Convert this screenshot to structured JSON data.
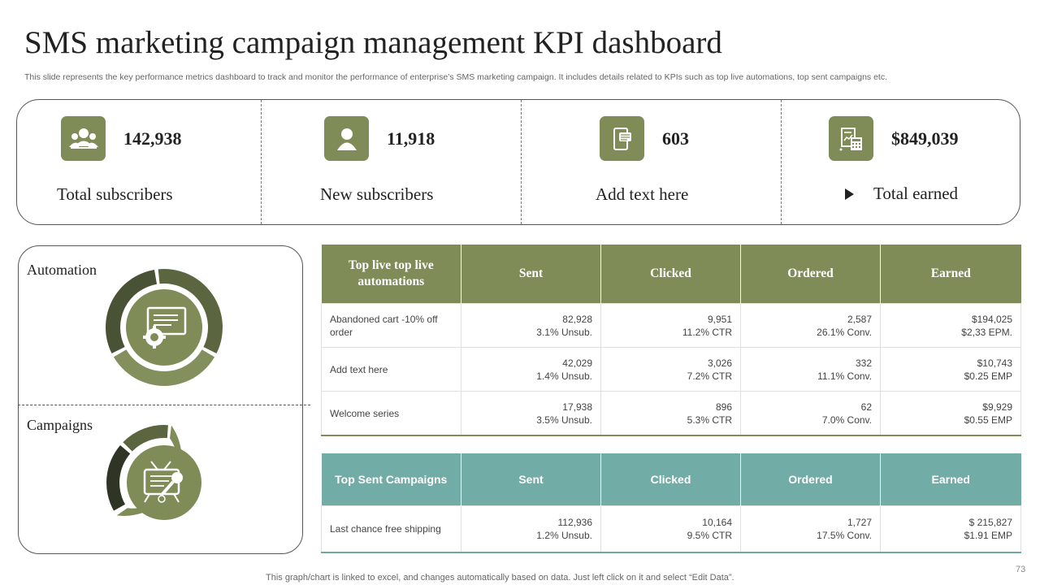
{
  "title": "SMS marketing campaign management KPI dashboard",
  "subtitle": "This slide represents the key performance metrics dashboard to track and monitor the performance of enterprise’s SMS marketing campaign. It includes details related to KPIs such as top live  automations, top sent campaigns etc.",
  "colors": {
    "olive": "#7f8c57",
    "dark_olive": "#4f5a38",
    "teal": "#72aca6"
  },
  "kpis": [
    {
      "value": "142,938",
      "label": "Total subscribers",
      "icon": "group-users-icon"
    },
    {
      "value": "11,918",
      "label": "New subscribers",
      "icon": "user-icon"
    },
    {
      "value": "603",
      "label": "Add text here",
      "icon": "mobile-message-icon"
    },
    {
      "value": "$849,039",
      "label": "Total earned",
      "icon": "calculator-document-icon"
    }
  ],
  "side": {
    "automation_label": "Automation",
    "campaigns_label": "Campaigns"
  },
  "automations_table": {
    "headers": [
      "Top live top live automations",
      "Sent",
      "Clicked",
      "Ordered",
      "Earned"
    ],
    "rows": [
      {
        "name": "Abandoned cart -10% off order",
        "sent": "82,928",
        "sent_sub": "3.1% Unsub.",
        "clicked": "9,951",
        "clicked_sub": "11.2% CTR",
        "ordered": "2,587",
        "ordered_sub": "26.1% Conv.",
        "earned": "$194,025",
        "earned_sub": "$2,33 EPM."
      },
      {
        "name": "Add text here",
        "sent": "42,029",
        "sent_sub": "1.4% Unsub.",
        "clicked": "3,026",
        "clicked_sub": "7.2% CTR",
        "ordered": "332",
        "ordered_sub": "11.1% Conv.",
        "earned": "$10,743",
        "earned_sub": "$0.25 EMP"
      },
      {
        "name": "Welcome series",
        "sent": "17,938",
        "sent_sub": "3.5% Unsub.",
        "clicked": "896",
        "clicked_sub": "5.3% CTR",
        "ordered": "62",
        "ordered_sub": "7.0% Conv.",
        "earned": "$9,929",
        "earned_sub": "$0.55 EMP"
      }
    ]
  },
  "campaigns_table": {
    "headers": [
      "Top Sent Campaigns",
      "Sent",
      "Clicked",
      "Ordered",
      "Earned"
    ],
    "rows": [
      {
        "name": "Last chance free shipping",
        "sent": "112,936",
        "sent_sub": "1.2% Unsub.",
        "clicked": "10,164",
        "clicked_sub": "9.5% CTR",
        "ordered": "1,727",
        "ordered_sub": "17.5% Conv.",
        "earned": "$ 215,827",
        "earned_sub": "$1.91 EMP"
      }
    ]
  },
  "footer": "This graph/chart is linked to excel,  and changes automatically based on data. Just left click on it and select “Edit Data”.",
  "page_number": "73"
}
